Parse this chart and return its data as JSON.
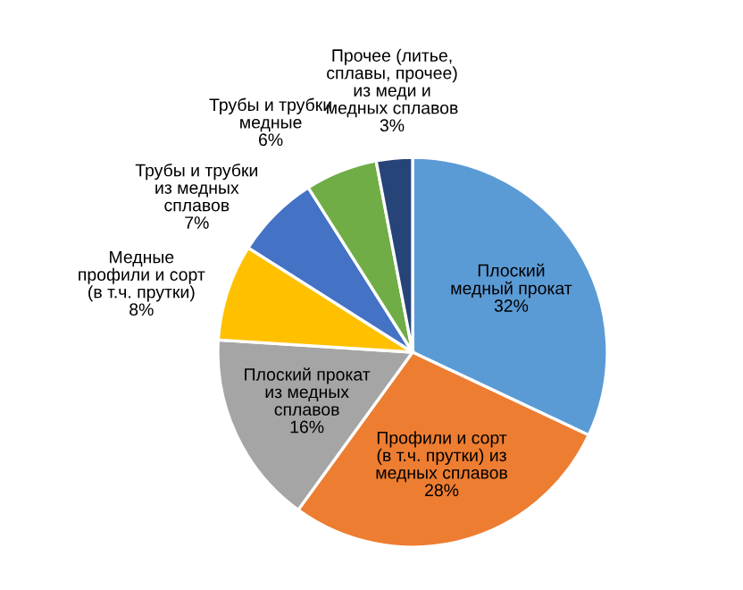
{
  "chart_data": {
    "type": "pie",
    "categories": [
      "Плоский\nмедный прокат",
      "Профили и сорт\n(в т.ч. прутки) из\nмедных сплавов",
      "Плоский прокат\nиз медных\nсплавов",
      "Медные\nпрофили и сорт\n(в т.ч. прутки)",
      "Трубы и трубки\nиз медных\nсплавов",
      "Трубы и трубки\nмедные",
      "Прочее (литье,\nсплавы, прочее)\nиз меди и\nмедных сплавов"
    ],
    "values": [
      32,
      28,
      16,
      8,
      7,
      6,
      3
    ],
    "value_labels": [
      "32%",
      "28%",
      "16%",
      "8%",
      "7%",
      "6%",
      "3%"
    ],
    "colors": [
      "#5b9bd5",
      "#ed7d31",
      "#a5a5a5",
      "#ffc000",
      "#4472c4",
      "#70ad47",
      "#264478"
    ],
    "legend": false
  }
}
